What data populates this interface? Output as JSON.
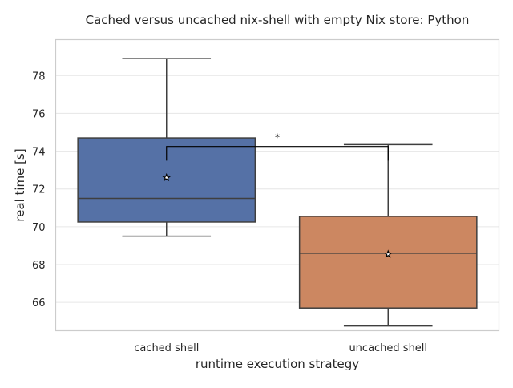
{
  "chart_data": {
    "type": "box",
    "title": "Cached versus uncached nix-shell with empty Nix store: Python",
    "xlabel": "runtime execution strategy",
    "ylabel": "real time [s]",
    "ylim": [
      64.5,
      79.9
    ],
    "yticks": [
      66,
      68,
      70,
      72,
      74,
      76,
      78
    ],
    "grid": "horizontal",
    "categories": [
      "cached shell",
      "uncached shell"
    ],
    "boxes": [
      {
        "category": "cached shell",
        "color": "#5571a6",
        "whisker_low": 69.5,
        "q1": 70.25,
        "median": 71.5,
        "q3": 74.7,
        "whisker_high": 78.9,
        "mean": 72.6
      },
      {
        "category": "uncached shell",
        "color": "#cc8761",
        "whisker_low": 64.75,
        "q1": 65.7,
        "median": 68.6,
        "q3": 70.55,
        "whisker_high": 74.35,
        "mean": 68.55
      }
    ],
    "significance": {
      "from": "cached shell",
      "to": "uncached shell",
      "label": "*",
      "bracket_y": 74.25,
      "tick_low": 73.5
    }
  }
}
